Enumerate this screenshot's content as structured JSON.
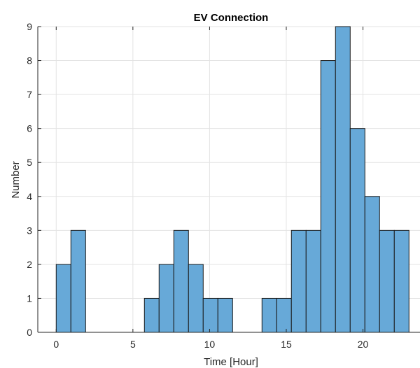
{
  "chart_data": {
    "type": "bar",
    "title": "EV Connection",
    "xlabel": "Time [Hour]",
    "ylabel": "Number",
    "xlim": [
      -1.2,
      23.9
    ],
    "ylim": [
      0,
      9
    ],
    "xticks": [
      0,
      5,
      10,
      15,
      20
    ],
    "yticks": [
      0,
      1,
      2,
      3,
      4,
      5,
      6,
      7,
      8,
      9
    ],
    "grid": true,
    "bin_edges": [
      0,
      0.958,
      1.917,
      2.875,
      3.833,
      4.792,
      5.75,
      6.708,
      7.667,
      8.625,
      9.583,
      10.542,
      11.5,
      12.458,
      13.417,
      14.375,
      15.333,
      16.292,
      17.25,
      18.208,
      19.167,
      20.125,
      21.083,
      22.042,
      23
    ],
    "values": [
      2,
      3,
      0,
      0,
      0,
      0,
      1,
      2,
      3,
      2,
      1,
      1,
      0,
      0,
      1,
      1,
      3,
      3,
      8,
      9,
      6,
      4,
      3,
      3
    ],
    "colors": {
      "bar_fill": "#67a9d8",
      "bar_edge": "#1a1a1a",
      "grid": "#e3e3e3",
      "axis": "#262626"
    }
  }
}
